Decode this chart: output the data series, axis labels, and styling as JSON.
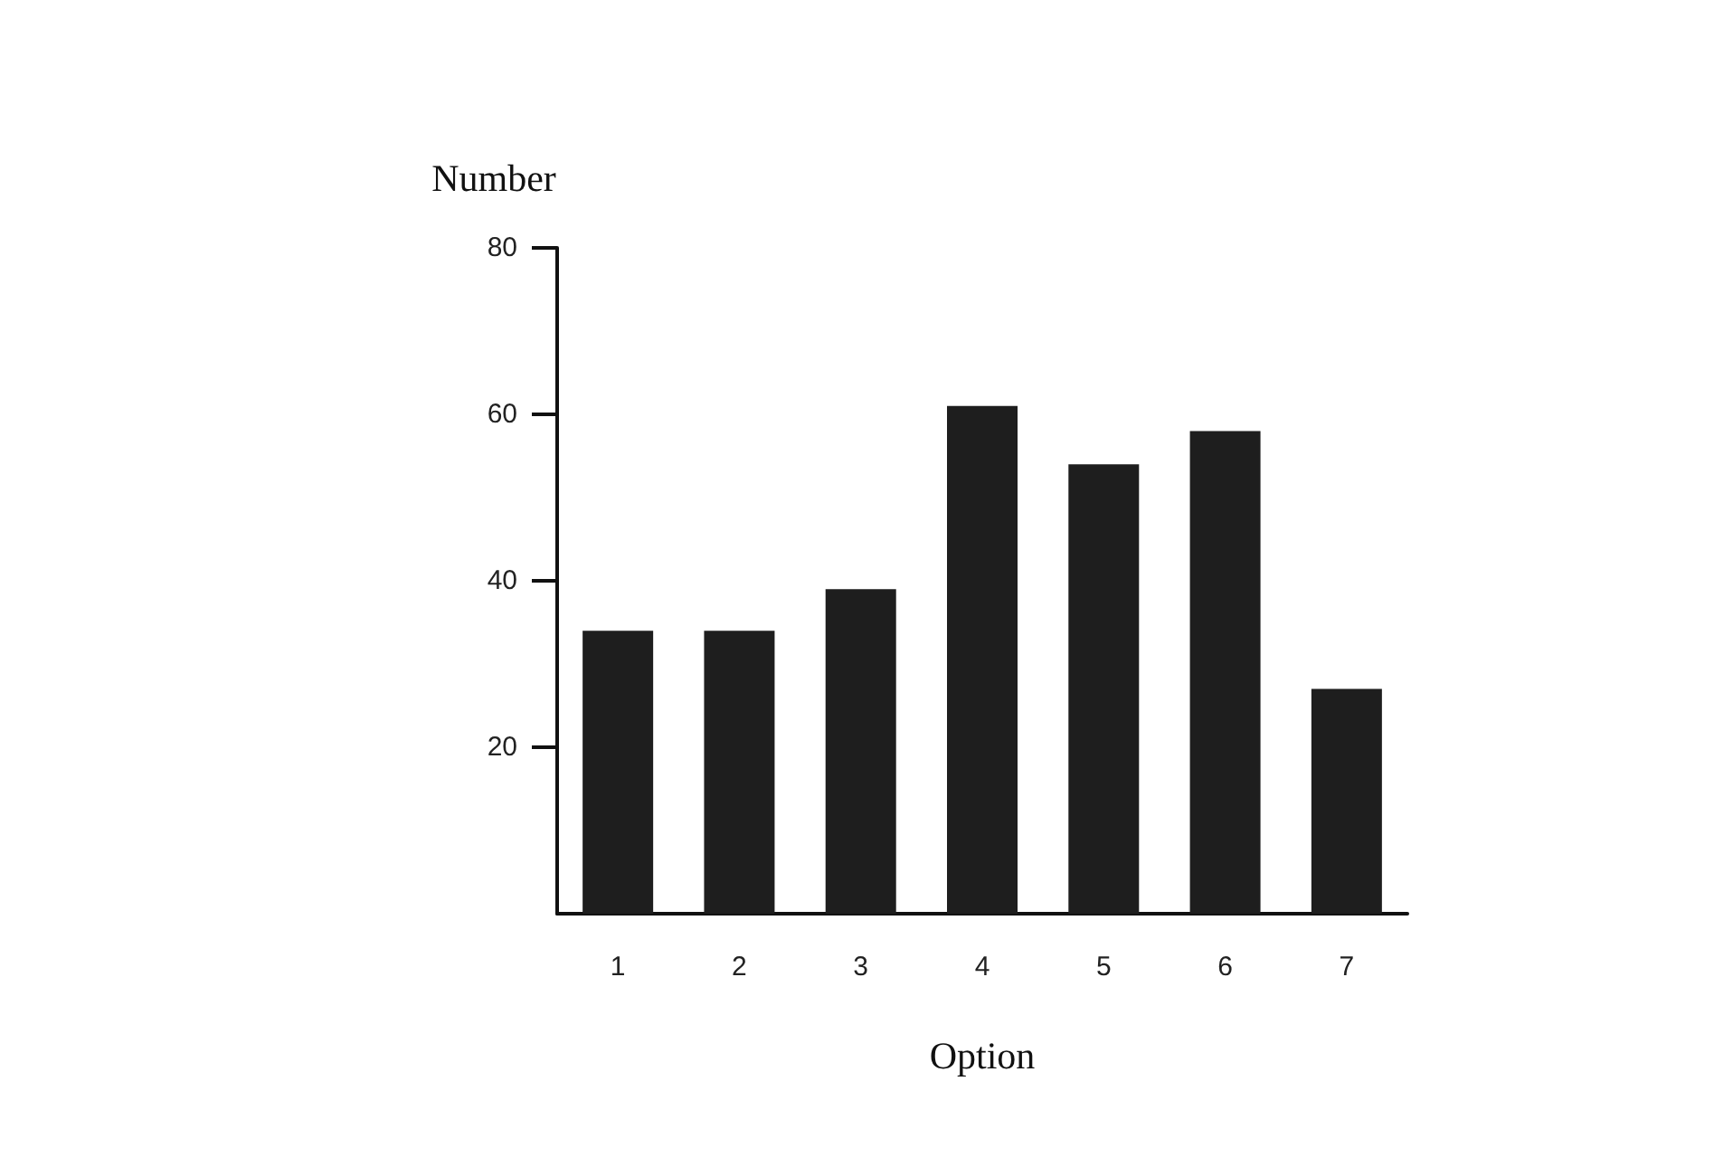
{
  "chart_data": {
    "type": "bar",
    "xlabel": "Option",
    "ylabel": "Number",
    "categories": [
      "1",
      "2",
      "3",
      "4",
      "5",
      "6",
      "7"
    ],
    "values": [
      34,
      34,
      39,
      61,
      54,
      58,
      27
    ],
    "color": "#1e1e1e",
    "ylim": [
      0,
      80
    ],
    "yticks": [
      20,
      40,
      60,
      80
    ],
    "grid": false
  }
}
